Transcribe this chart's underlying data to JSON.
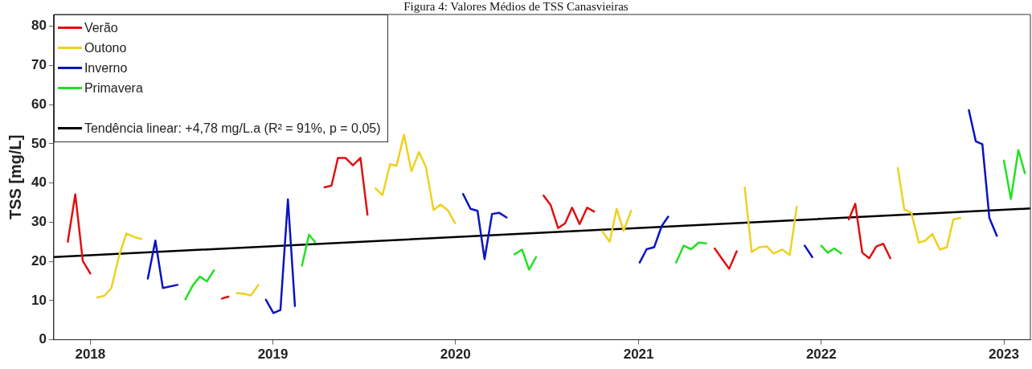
{
  "chart_data": {
    "type": "line",
    "title": "Figura 4: Valores Médios de TSS Canasvieiras",
    "ylabel": "TSS [mg/L]",
    "xlim": [
      "2017-10-20",
      "2023-02-23"
    ],
    "xticks": [
      "2018",
      "2019",
      "2020",
      "2021",
      "2022",
      "2023"
    ],
    "ylim": [
      0,
      83
    ],
    "yticks": [
      0,
      10,
      20,
      30,
      40,
      50,
      60,
      70,
      80
    ],
    "grid": false,
    "legend": "top left",
    "marker": "none",
    "line_style": "solid",
    "series": [
      {
        "name": "Verão",
        "color": "#e01010",
        "x": [
          "2017-11-17",
          "2017-12-02",
          "2017-12-17",
          "2018-01-01",
          null,
          "2018-09-21",
          "2018-10-04",
          null,
          "2019-04-14",
          "2019-04-28",
          "2019-05-11",
          "2019-05-26",
          "2019-06-10",
          "2019-06-25",
          "2019-07-09",
          null,
          "2020-06-25",
          "2020-07-09",
          "2020-07-24",
          "2020-08-07",
          "2020-08-21",
          "2020-09-05",
          "2020-09-20",
          "2020-10-04",
          null,
          "2021-06-02",
          "2021-06-17",
          "2021-07-01",
          "2021-07-16",
          null,
          "2022-02-25",
          "2022-03-10",
          "2022-03-24",
          "2022-04-07",
          "2022-04-21",
          "2022-05-05",
          "2022-05-19"
        ],
        "values": [
          25.0,
          37.1,
          20.1,
          16.9,
          null,
          10.5,
          11.0,
          null,
          38.9,
          39.3,
          46.4,
          46.4,
          44.5,
          46.4,
          31.9,
          null,
          36.8,
          34.4,
          28.5,
          29.7,
          33.7,
          29.5,
          33.7,
          32.7,
          null,
          23.3,
          20.6,
          18.1,
          22.6,
          null,
          30.7,
          34.7,
          22.2,
          20.8,
          23.8,
          24.5,
          20.8
        ]
      },
      {
        "name": "Outono",
        "color": "#f0d020",
        "x": [
          "2018-01-15",
          "2018-01-29",
          "2018-02-12",
          "2018-02-28",
          "2018-03-14",
          "2018-03-28",
          "2018-04-13",
          null,
          "2018-10-21",
          "2018-11-05",
          "2018-11-18",
          "2018-12-03",
          null,
          "2019-07-25",
          "2019-08-08",
          "2019-08-23",
          "2019-09-05",
          "2019-09-20",
          "2019-10-05",
          "2019-10-20",
          "2019-11-03",
          "2019-11-18",
          "2019-12-02",
          "2019-12-16",
          "2019-12-31",
          null,
          "2020-10-20",
          "2020-11-04",
          "2020-11-18",
          "2020-12-02",
          "2020-12-17",
          null,
          "2021-08-01",
          "2021-08-15",
          "2021-08-30",
          "2021-09-14",
          "2021-09-28",
          "2021-10-15",
          "2021-10-30",
          "2021-11-13",
          null,
          "2022-06-03",
          "2022-06-16",
          "2022-06-30",
          "2022-07-15",
          "2022-07-28",
          "2022-08-11",
          "2022-08-26",
          "2022-09-09",
          "2022-09-22",
          "2022-10-06"
        ],
        "values": [
          10.8,
          11.2,
          13.2,
          21.6,
          27.1,
          26.3,
          25.7,
          null,
          11.9,
          11.7,
          11.3,
          14.0,
          null,
          38.6,
          36.9,
          44.8,
          44.4,
          52.3,
          43.0,
          47.9,
          44.0,
          33.1,
          34.5,
          33.1,
          29.8,
          null,
          27.7,
          25.0,
          33.4,
          27.8,
          32.9,
          null,
          38.8,
          22.4,
          23.6,
          23.8,
          22.0,
          23.0,
          21.6,
          33.9,
          null,
          43.8,
          33.2,
          32.4,
          24.8,
          25.3,
          27.0,
          23.0,
          23.6,
          30.7,
          31.1
        ]
      },
      {
        "name": "Inverno",
        "color": "#0a14c0",
        "x": [
          "2018-04-26",
          "2018-05-11",
          "2018-05-26",
          "2018-06-24",
          null,
          "2018-12-18",
          "2019-01-02",
          "2019-01-16",
          "2019-01-31",
          "2019-02-14",
          null,
          "2020-01-16",
          "2020-01-31",
          "2020-02-14",
          "2020-02-28",
          "2020-03-14",
          "2020-03-28",
          "2020-04-12",
          null,
          "2021-01-03",
          "2021-01-17",
          "2021-02-01",
          "2021-02-16",
          "2021-03-01",
          null,
          "2021-11-29",
          "2021-12-14",
          null,
          "2022-10-23",
          "2022-11-06",
          "2022-11-19",
          "2022-12-03",
          "2022-12-18"
        ],
        "values": [
          15.6,
          25.3,
          13.2,
          14.0,
          null,
          10.2,
          6.8,
          7.6,
          35.8,
          8.6,
          null,
          37.2,
          33.4,
          32.9,
          20.6,
          32.1,
          32.4,
          31.2,
          null,
          19.7,
          23.1,
          23.6,
          29.0,
          31.4,
          null,
          24.0,
          21.1,
          null,
          58.6,
          50.6,
          49.9,
          31.1,
          26.5
        ]
      },
      {
        "name": "Primavera",
        "color": "#22e022",
        "x": [
          "2018-07-10",
          "2018-07-25",
          "2018-08-08",
          "2018-08-22",
          "2018-09-05",
          null,
          "2019-02-28",
          "2019-03-14",
          "2019-03-26",
          null,
          "2020-04-28",
          "2020-05-13",
          "2020-05-27",
          "2020-06-10",
          null,
          "2021-03-17",
          "2021-04-01",
          "2021-04-16",
          "2021-05-01",
          "2021-05-16",
          null,
          "2022-01-01",
          "2022-01-14",
          "2022-01-27",
          "2022-02-10",
          null,
          "2023-01-01",
          "2023-01-15",
          "2023-01-30",
          "2023-02-12"
        ],
        "values": [
          10.3,
          13.9,
          16.1,
          14.9,
          17.7,
          null,
          18.9,
          26.8,
          25.0,
          null,
          21.8,
          23.0,
          17.9,
          21.1,
          null,
          19.7,
          24.0,
          23.1,
          24.8,
          24.6,
          null,
          24.0,
          22.2,
          23.3,
          22.0,
          null,
          45.7,
          35.9,
          48.4,
          42.5
        ]
      },
      {
        "name": "Tendência linear: +4,78 mg/L.a (R² = 91%, p = 0,05)",
        "type": "line",
        "color": "#000000",
        "x": [
          "2017-10-20",
          "2023-02-23"
        ],
        "values": [
          21.1,
          33.5
        ]
      }
    ]
  }
}
